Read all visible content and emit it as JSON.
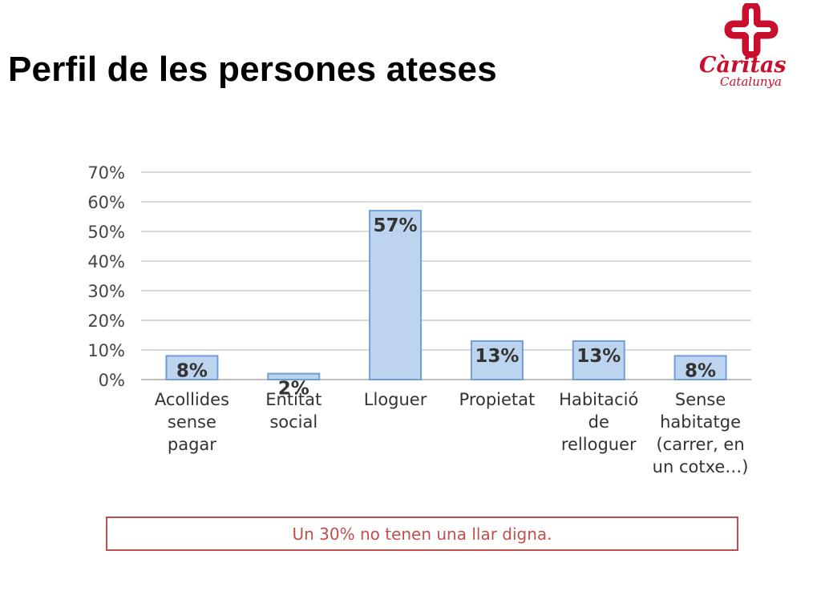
{
  "slide": {
    "title": "Perfil de les persones ateses",
    "note": "Un 30% no tenen una llar digna."
  },
  "logo": {
    "word": "Càritas",
    "sub": "Catalunya",
    "color": "#c8102e"
  },
  "chart_data": {
    "type": "bar",
    "categories": [
      [
        "Acollides",
        "sense",
        "pagar"
      ],
      [
        "Entitat",
        "social"
      ],
      [
        "Lloguer"
      ],
      [
        "Propietat"
      ],
      [
        "Habitació",
        "de",
        "relloguer"
      ],
      [
        "Sense",
        "habitatge",
        "(carrer, en",
        "un cotxe…)"
      ]
    ],
    "values": [
      8,
      2,
      57,
      13,
      13,
      8
    ],
    "data_labels": [
      "8%",
      "2%",
      "57%",
      "13%",
      "13%",
      "8%"
    ],
    "yticks": [
      "0%",
      "10%",
      "20%",
      "30%",
      "40%",
      "50%",
      "60%",
      "70%"
    ],
    "ylim": [
      0,
      70
    ],
    "grid": true,
    "bar_color": "#bcd4ee",
    "bar_border": "#6f9fd8"
  }
}
